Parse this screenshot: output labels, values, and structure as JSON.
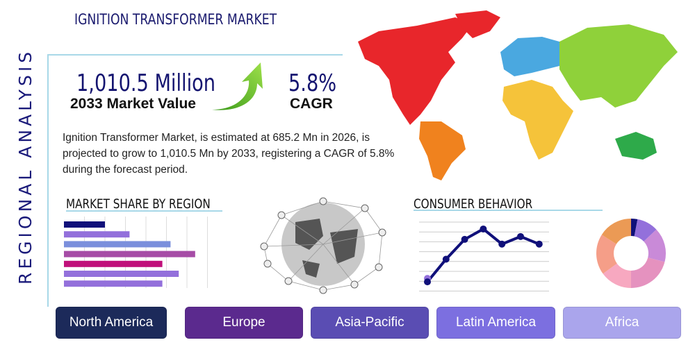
{
  "header": {
    "title": "IGNITION TRANSFORMER MARKET",
    "side_label": "REGIONAL ANALYSIS"
  },
  "highlights": {
    "market_value": "1,010.5 Million",
    "market_value_label": "2033 Market Value",
    "cagr": "5.8%",
    "cagr_label": "CAGR"
  },
  "description": "Ignition Transformer Market, is estimated at 685.2 Mn in 2026, is projected to grow to 1,010.5 Mn by 2033, registering a CAGR of 5.8% during the forecast period.",
  "market_share": {
    "title": "MARKET SHARE BY REGION",
    "bars": [
      {
        "value": 2.0,
        "color": "#10107a"
      },
      {
        "value": 3.2,
        "color": "#9370db"
      },
      {
        "value": 5.2,
        "color": "#7b8fdc"
      },
      {
        "value": 6.4,
        "color": "#a64ca6"
      },
      {
        "value": 4.8,
        "color": "#c0107a"
      },
      {
        "value": 5.6,
        "color": "#9370db"
      },
      {
        "value": 4.8,
        "color": "#9370db"
      }
    ]
  },
  "consumer_behavior": {
    "title": "CONSUMER BEHAVIOR",
    "line_values": [
      0.8,
      3.2,
      5.3,
      6.4,
      4.8,
      5.6,
      4.8
    ],
    "line_color": "#10107a",
    "donut": [
      {
        "value": 3,
        "color": "#10107a"
      },
      {
        "value": 10,
        "color": "#9370db"
      },
      {
        "value": 16,
        "color": "#c98ad8"
      },
      {
        "value": 21,
        "color": "#e592bf"
      },
      {
        "value": 15,
        "color": "#f7a8c0"
      },
      {
        "value": 19,
        "color": "#f59e88"
      },
      {
        "value": 16,
        "color": "#eb9a55"
      }
    ]
  },
  "regions": [
    {
      "label": "North America",
      "color": "#1c2a5a"
    },
    {
      "label": "Europe",
      "color": "#5b2a8e"
    },
    {
      "label": "Asia-Pacific",
      "color": "#5a4db3"
    },
    {
      "label": "Latin America",
      "color": "#7c6fe0"
    },
    {
      "label": "Africa",
      "color": "#aaa5ec"
    }
  ],
  "map_colors": {
    "north_america": "#e8262b",
    "south_america": "#f0821e",
    "europe": "#4aa8e0",
    "africa": "#f5c33a",
    "asia": "#8fd13a",
    "oceania": "#2eaa4a",
    "greenland": "#e8262b"
  }
}
